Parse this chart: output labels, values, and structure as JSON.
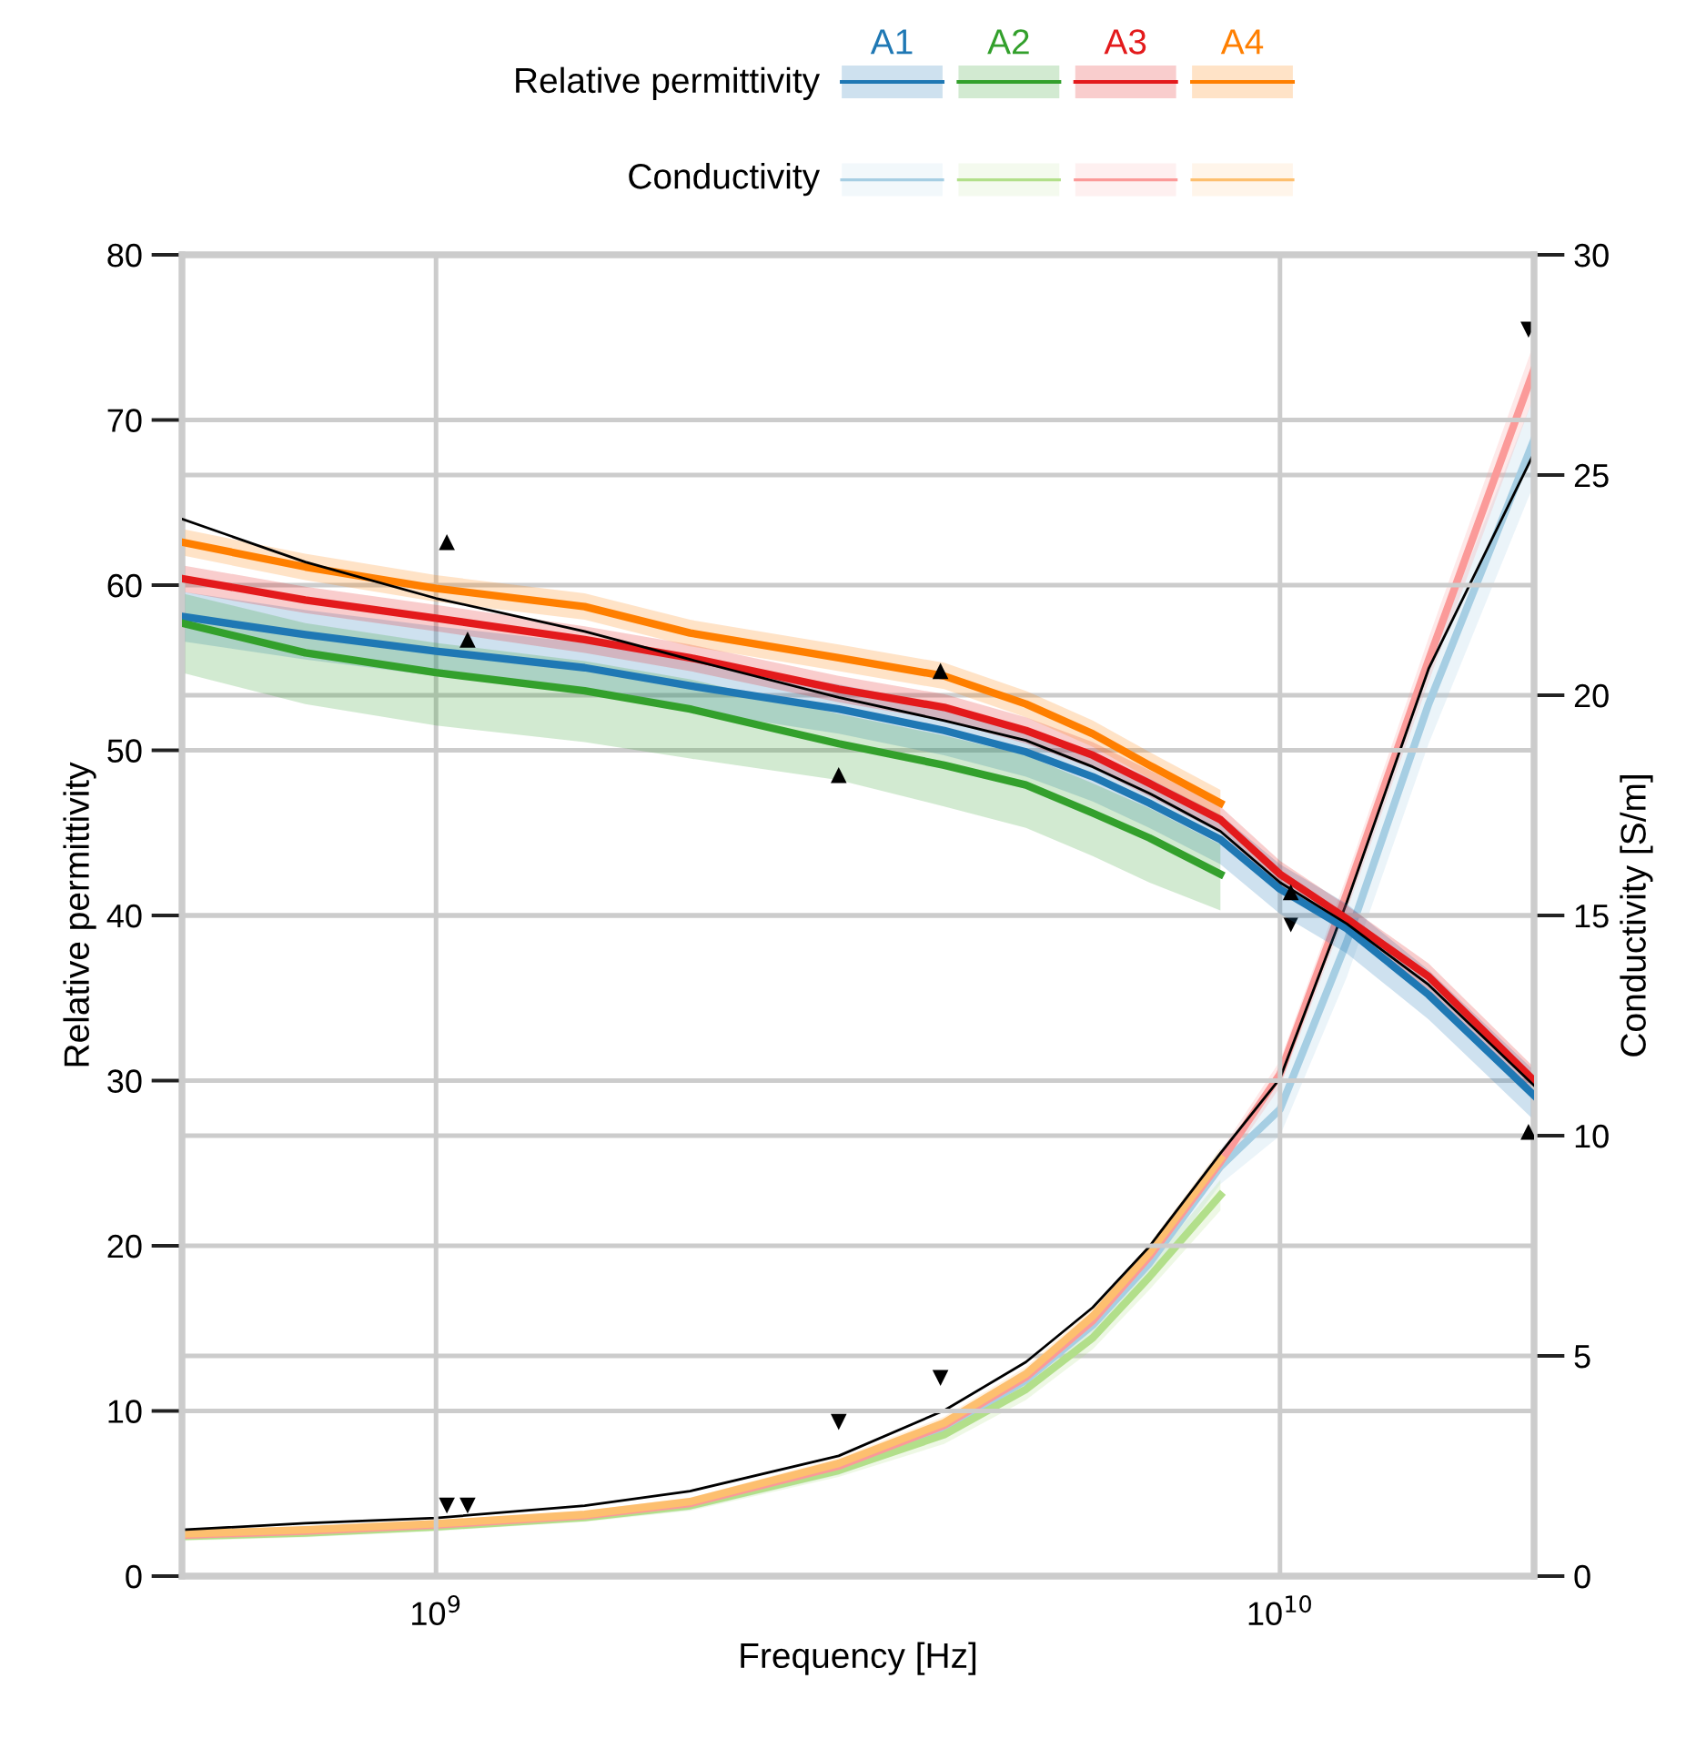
{
  "chart_data": {
    "type": "line",
    "xlabel": "Frequency [Hz]",
    "ylabel": "Relative permittivity",
    "y2label": "Conductivity [S/m]",
    "log": "x",
    "grid": true,
    "legend": "top",
    "line_style": "solid",
    "xlim": [
      500000000,
      20000000000
    ],
    "xticks": [
      {
        "value": 1000000000,
        "label": "10$^{9}$"
      },
      {
        "value": 10000000000,
        "label": "10$^{10}$"
      }
    ],
    "ylim": [
      0,
      80
    ],
    "yticks": [
      0,
      10,
      20,
      30,
      40,
      50,
      60,
      70,
      80
    ],
    "y2lim": [
      0,
      30
    ],
    "y2ticks": [
      0,
      5,
      10,
      15,
      20,
      25,
      30
    ],
    "annotations": [
      "Relative permittivity",
      "Conductivity"
    ],
    "x": [
      500000000,
      700000000,
      1000000000,
      1500000000,
      2000000000,
      3000000000,
      4000000000,
      5000000000,
      6000000000,
      7000000000,
      8500000000,
      10000000000,
      12000000000,
      15000000000,
      20000000000
    ],
    "series": [
      {
        "name": "A1",
        "color": "#1f78b4",
        "values": [
          58.1,
          57.0,
          56.0,
          55.0,
          53.9,
          52.5,
          51.2,
          49.9,
          48.4,
          46.8,
          44.6,
          41.6,
          39.2,
          35.2,
          29.1
        ],
        "lower": [
          56.6,
          55.5,
          54.5,
          53.5,
          52.4,
          51.0,
          49.7,
          48.4,
          46.9,
          45.3,
          43.1,
          40.1,
          37.7,
          33.7,
          27.6
        ],
        "upper": [
          59.6,
          58.5,
          57.5,
          56.5,
          55.4,
          54.0,
          52.7,
          51.4,
          49.9,
          48.3,
          46.1,
          43.1,
          40.7,
          36.7,
          30.6
        ]
      },
      {
        "name": "A2",
        "color": "#33a02c",
        "values": [
          57.7,
          55.9,
          54.7,
          53.6,
          52.5,
          50.4,
          49.1,
          47.9,
          46.2,
          44.7,
          42.5,
          null,
          null,
          null,
          null
        ],
        "lower": [
          54.7,
          52.8,
          51.5,
          50.5,
          49.5,
          48.2,
          46.6,
          45.3,
          43.6,
          42.0,
          40.3,
          null,
          null,
          null,
          null
        ],
        "upper": [
          59.5,
          57.7,
          56.5,
          55.4,
          54.3,
          52.2,
          50.9,
          49.7,
          48.0,
          46.5,
          44.3,
          null,
          null,
          null,
          null
        ]
      },
      {
        "name": "A3",
        "color": "#e31a1c",
        "values": [
          60.4,
          59.1,
          58.0,
          56.7,
          55.6,
          53.7,
          52.6,
          51.2,
          49.7,
          48.0,
          45.8,
          42.5,
          39.8,
          36.3,
          30.0
        ],
        "lower": [
          59.6,
          58.3,
          57.2,
          55.9,
          54.8,
          52.9,
          51.8,
          50.4,
          48.9,
          47.2,
          45.0,
          41.7,
          39.0,
          35.5,
          29.2
        ],
        "upper": [
          61.2,
          59.9,
          58.8,
          57.5,
          56.4,
          54.5,
          53.4,
          52.0,
          50.5,
          48.8,
          46.6,
          43.3,
          40.6,
          37.1,
          30.8
        ]
      },
      {
        "name": "A4",
        "color": "#ff7f00",
        "values": [
          62.6,
          61.1,
          59.8,
          58.7,
          57.1,
          55.6,
          54.5,
          52.8,
          51.0,
          49.1,
          46.8,
          null,
          null,
          null,
          null
        ],
        "lower": [
          61.8,
          60.3,
          59.0,
          57.9,
          56.3,
          54.8,
          53.7,
          52.0,
          50.2,
          48.3,
          46.0,
          null,
          null,
          null,
          null
        ],
        "upper": [
          63.4,
          61.9,
          60.6,
          59.5,
          57.9,
          56.4,
          55.3,
          53.6,
          51.8,
          49.9,
          47.6,
          null,
          null,
          null,
          null
        ]
      },
      {
        "axis": "y2",
        "color": "#a6cee3",
        "values": [
          0.92,
          1.0,
          1.14,
          1.35,
          1.62,
          2.45,
          3.35,
          4.45,
          5.7,
          7.1,
          9.3,
          10.6,
          14.4,
          19.8,
          25.8
        ],
        "lower": [
          0.82,
          0.9,
          1.04,
          1.25,
          1.5,
          2.3,
          3.15,
          4.2,
          5.4,
          6.75,
          8.9,
          10.0,
          13.6,
          18.9,
          24.8
        ],
        "upper": [
          1.02,
          1.1,
          1.24,
          1.45,
          1.74,
          2.6,
          3.55,
          4.7,
          6.0,
          7.45,
          9.7,
          11.2,
          15.2,
          20.7,
          26.8
        ]
      },
      {
        "axis": "y2",
        "color": "#b2df8a",
        "values": [
          0.9,
          0.98,
          1.12,
          1.33,
          1.6,
          2.4,
          3.21,
          4.24,
          5.41,
          6.79,
          8.65,
          null,
          null,
          null,
          null
        ],
        "lower": [
          0.8,
          0.88,
          1.02,
          1.23,
          1.48,
          2.25,
          3.0,
          4.0,
          5.15,
          6.5,
          8.3,
          null,
          null,
          null,
          null
        ],
        "upper": [
          1.0,
          1.08,
          1.22,
          1.43,
          1.72,
          2.55,
          3.42,
          4.48,
          5.67,
          7.08,
          9.0,
          null,
          null,
          null,
          null
        ]
      },
      {
        "axis": "y2",
        "color": "#fb9a99",
        "values": [
          0.93,
          1.02,
          1.16,
          1.37,
          1.65,
          2.5,
          3.42,
          4.52,
          5.8,
          7.25,
          9.4,
          11.4,
          15.5,
          20.8,
          27.4
        ],
        "lower": [
          0.85,
          0.94,
          1.08,
          1.29,
          1.56,
          2.38,
          3.28,
          4.37,
          5.63,
          7.05,
          9.15,
          11.1,
          15.1,
          20.3,
          26.8
        ],
        "upper": [
          1.01,
          1.1,
          1.24,
          1.45,
          1.74,
          2.62,
          3.56,
          4.67,
          5.97,
          7.45,
          9.65,
          11.7,
          15.9,
          21.3,
          28.0
        ]
      },
      {
        "axis": "y2",
        "color": "#fdbf6f",
        "values": [
          0.96,
          1.05,
          1.19,
          1.4,
          1.69,
          2.56,
          3.48,
          4.59,
          5.9,
          7.34,
          9.48,
          null,
          null,
          null,
          null
        ],
        "lower": [
          0.88,
          0.97,
          1.11,
          1.32,
          1.6,
          2.44,
          3.34,
          4.43,
          5.72,
          7.14,
          9.25,
          null,
          null,
          null,
          null
        ],
        "upper": [
          1.04,
          1.13,
          1.27,
          1.48,
          1.78,
          2.68,
          3.62,
          4.75,
          6.08,
          7.54,
          9.71,
          null,
          null,
          null,
          null
        ]
      },
      {
        "color": "#000000",
        "values": [
          64.0,
          61.4,
          59.2,
          57.2,
          55.5,
          53.2,
          51.8,
          50.6,
          49.0,
          47.4,
          45.1,
          42.0,
          39.5,
          35.8,
          29.7
        ]
      },
      {
        "axis": "y2",
        "color": "#000000",
        "values": [
          1.05,
          1.2,
          1.32,
          1.6,
          1.93,
          2.73,
          3.76,
          4.86,
          6.1,
          7.48,
          9.6,
          11.3,
          15.3,
          20.6,
          25.5
        ]
      },
      {
        "type": "scatter",
        "marker": "triangle",
        "color": "#000000",
        "x": [
          1030000000,
          1090000000,
          3000000000,
          3960000000,
          10300000000,
          19700000000
        ],
        "values": [
          62.6,
          56.7,
          48.5,
          54.8,
          41.4,
          26.9
        ]
      },
      {
        "type": "scatter",
        "marker": "triangle",
        "axis": "y2",
        "color": "#000000",
        "x": [
          1030000000,
          1090000000,
          3000000000,
          3960000000,
          10300000000,
          19700000000
        ],
        "values": [
          1.6,
          1.6,
          3.5,
          4.5,
          14.8,
          28.3
        ]
      }
    ]
  }
}
